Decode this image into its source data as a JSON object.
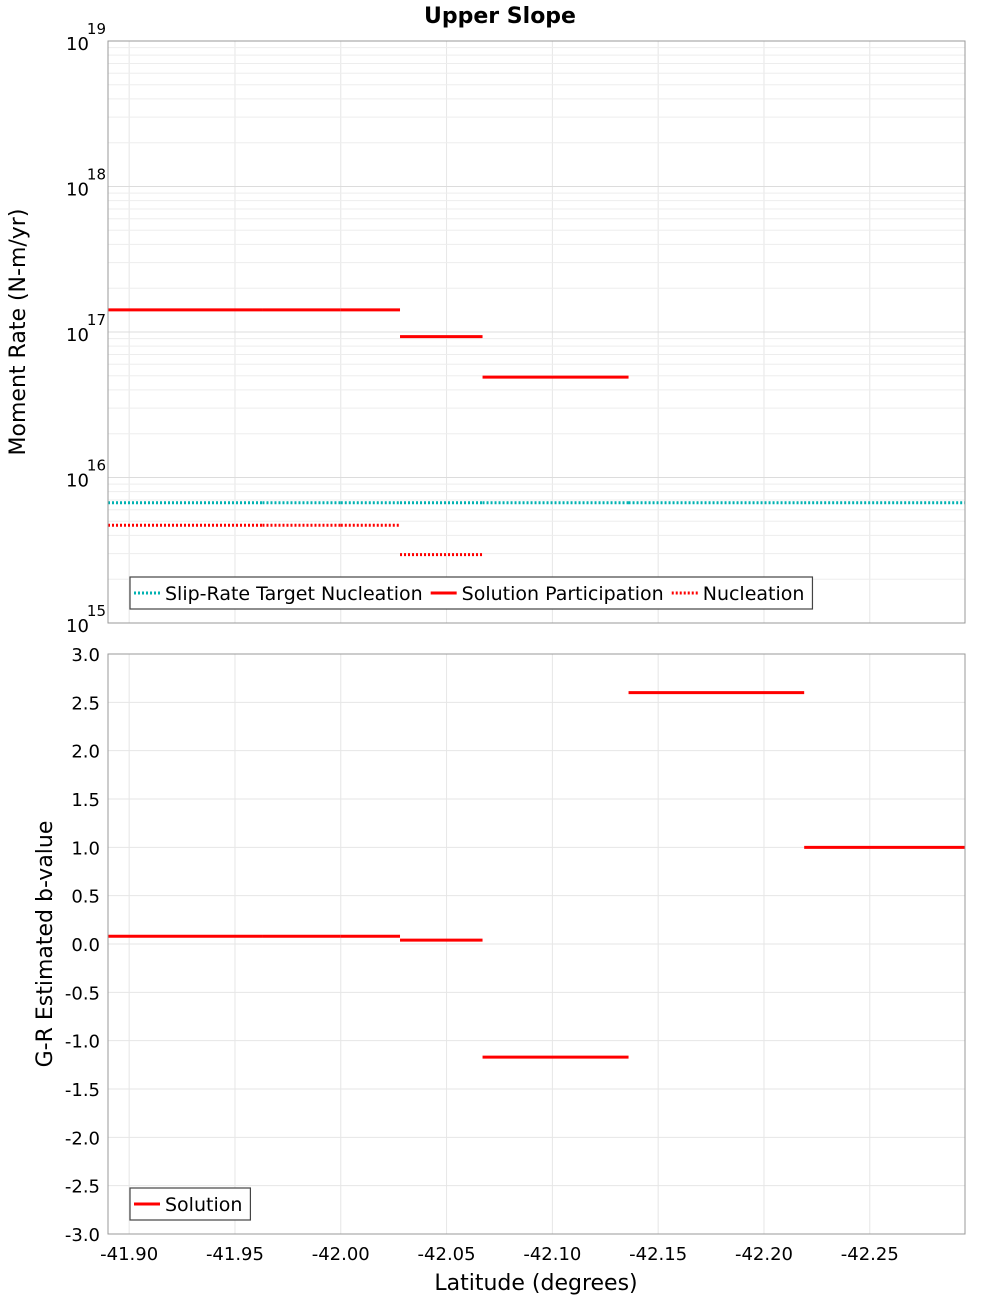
{
  "chart_data": [
    {
      "type": "line",
      "title": "Upper Slope",
      "xlabel": "Latitude (degrees)",
      "ylabel": "Moment Rate (N-m/yr)",
      "yscale": "log",
      "xlim": [
        -41.89,
        -42.295
      ],
      "ylim": [
        1000000000000000.0,
        1e+19
      ],
      "x_ticks": [
        "-41.90",
        "-41.95",
        "-42.00",
        "-42.05",
        "-42.10",
        "-42.15",
        "-42.20",
        "-42.25"
      ],
      "x_tick_values": [
        -41.9,
        -41.95,
        -42.0,
        -42.05,
        -42.1,
        -42.15,
        -42.2,
        -42.25
      ],
      "y_tick_values": [
        1000000000000000.0,
        1e+16,
        1e+17,
        1e+18,
        1e+19
      ],
      "y_tick_base": "10",
      "y_tick_exponents": [
        "15",
        "16",
        "17",
        "18",
        "19"
      ],
      "grid": true,
      "legend_position": "bottom-left",
      "series": [
        {
          "name": "Slip-Rate Target Nucleation",
          "color": "#00b2b2",
          "style": "dotted",
          "segments": [
            {
              "x": [
                -41.89,
                -41.963
              ],
              "y": 6700000000000000.0
            },
            {
              "x": [
                -41.963,
                -42.0
              ],
              "y": 6700000000000000.0
            },
            {
              "x": [
                -42.0,
                -42.028
              ],
              "y": 6700000000000000.0
            },
            {
              "x": [
                -42.028,
                -42.067
              ],
              "y": 6700000000000000.0
            },
            {
              "x": [
                -42.067,
                -42.136
              ],
              "y": 6700000000000000.0
            },
            {
              "x": [
                -42.136,
                -42.219
              ],
              "y": 6700000000000000.0
            },
            {
              "x": [
                -42.219,
                -42.295
              ],
              "y": 6700000000000000.0
            }
          ]
        },
        {
          "name": "Solution Participation",
          "color": "#ff0000",
          "style": "solid",
          "segments": [
            {
              "x": [
                -41.89,
                -41.963
              ],
              "y": 1.42e+17
            },
            {
              "x": [
                -41.963,
                -42.0
              ],
              "y": 1.42e+17
            },
            {
              "x": [
                -42.0,
                -42.028
              ],
              "y": 1.42e+17
            },
            {
              "x": [
                -42.028,
                -42.067
              ],
              "y": 9.3e+16
            },
            {
              "x": [
                -42.067,
                -42.136
              ],
              "y": 4.9e+16
            }
          ]
        },
        {
          "name": "Nucleation",
          "color": "#ff0000",
          "style": "dotted",
          "segments": [
            {
              "x": [
                -41.89,
                -41.963
              ],
              "y": 4700000000000000.0
            },
            {
              "x": [
                -41.963,
                -42.0
              ],
              "y": 4700000000000000.0
            },
            {
              "x": [
                -42.0,
                -42.028
              ],
              "y": 4700000000000000.0
            },
            {
              "x": [
                -42.028,
                -42.067
              ],
              "y": 2950000000000000.0
            }
          ]
        }
      ]
    },
    {
      "type": "line",
      "xlabel": "Latitude (degrees)",
      "ylabel": "G-R Estimated b-value",
      "yscale": "linear",
      "xlim": [
        -41.89,
        -42.295
      ],
      "ylim": [
        -3.0,
        3.0
      ],
      "x_ticks": [
        "-41.90",
        "-41.95",
        "-42.00",
        "-42.05",
        "-42.10",
        "-42.15",
        "-42.20",
        "-42.25"
      ],
      "x_tick_values": [
        -41.9,
        -41.95,
        -42.0,
        -42.05,
        -42.1,
        -42.15,
        -42.2,
        -42.25
      ],
      "y_ticks": [
        "3.0",
        "2.5",
        "2.0",
        "1.5",
        "1.0",
        "0.5",
        "0.0",
        "-0.5",
        "-1.0",
        "-1.5",
        "-2.0",
        "-2.5",
        "-3.0"
      ],
      "y_tick_values": [
        3.0,
        2.5,
        2.0,
        1.5,
        1.0,
        0.5,
        0.0,
        -0.5,
        -1.0,
        -1.5,
        -2.0,
        -2.5,
        -3.0
      ],
      "grid": true,
      "legend_position": "bottom-left",
      "series": [
        {
          "name": "Solution",
          "color": "#ff0000",
          "style": "solid",
          "segments": [
            {
              "x": [
                -41.89,
                -41.963
              ],
              "y": 0.08
            },
            {
              "x": [
                -41.963,
                -42.0
              ],
              "y": 0.08
            },
            {
              "x": [
                -42.0,
                -42.028
              ],
              "y": 0.08
            },
            {
              "x": [
                -42.028,
                -42.067
              ],
              "y": 0.04
            },
            {
              "x": [
                -42.067,
                -42.136
              ],
              "y": -1.17
            },
            {
              "x": [
                -42.136,
                -42.219
              ],
              "y": 2.6
            },
            {
              "x": [
                -42.219,
                -42.295
              ],
              "y": 1.0
            }
          ]
        }
      ]
    }
  ]
}
